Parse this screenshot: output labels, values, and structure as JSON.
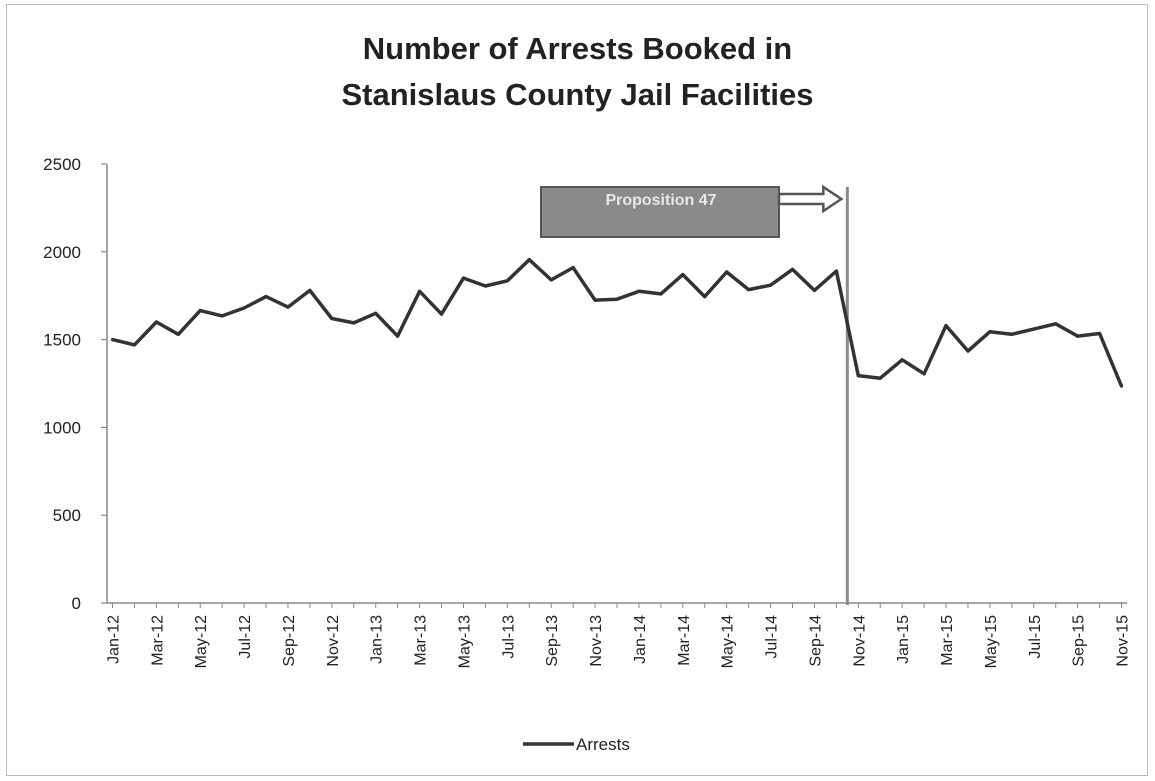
{
  "chart_data": {
    "type": "line",
    "title_line1": "Number of Arrests Booked in",
    "title_line2": "Stanislaus County Jail Facilities",
    "xlabel": "",
    "ylabel": "",
    "ylim": [
      0,
      2500
    ],
    "yticks": [
      0,
      500,
      1000,
      1500,
      2000,
      2500
    ],
    "grid": false,
    "legend_position": "bottom",
    "x": [
      "Jan-12",
      "Feb-12",
      "Mar-12",
      "Apr-12",
      "May-12",
      "Jun-12",
      "Jul-12",
      "Aug-12",
      "Sep-12",
      "Oct-12",
      "Nov-12",
      "Dec-12",
      "Jan-13",
      "Feb-13",
      "Mar-13",
      "Apr-13",
      "May-13",
      "Jun-13",
      "Jul-13",
      "Aug-13",
      "Sep-13",
      "Oct-13",
      "Nov-13",
      "Dec-13",
      "Jan-14",
      "Feb-14",
      "Mar-14",
      "Apr-14",
      "May-14",
      "Jun-14",
      "Jul-14",
      "Aug-14",
      "Sep-14",
      "Oct-14",
      "Nov-14",
      "Dec-14",
      "Jan-15",
      "Feb-15",
      "Mar-15",
      "Apr-15",
      "May-15",
      "Jun-15",
      "Jul-15",
      "Aug-15",
      "Sep-15",
      "Oct-15",
      "Nov-15"
    ],
    "xtick_labels": [
      "Jan-12",
      "Mar-12",
      "May-12",
      "Jul-12",
      "Sep-12",
      "Nov-12",
      "Jan-13",
      "Mar-13",
      "May-13",
      "Jul-13",
      "Sep-13",
      "Nov-13",
      "Jan-14",
      "Mar-14",
      "May-14",
      "Jul-14",
      "Sep-14",
      "Nov-14",
      "Jan-15",
      "Mar-15",
      "May-15",
      "Jul-15",
      "Sep-15",
      "Nov-15"
    ],
    "series": [
      {
        "name": "Arrests",
        "color": "#333333",
        "values": [
          1500,
          1470,
          1600,
          1530,
          1665,
          1635,
          1680,
          1745,
          1685,
          1780,
          1620,
          1595,
          1650,
          1520,
          1775,
          1645,
          1850,
          1805,
          1835,
          1955,
          1840,
          1910,
          1725,
          1730,
          1775,
          1760,
          1870,
          1745,
          1885,
          1785,
          1810,
          1900,
          1780,
          1890,
          1295,
          1280,
          1385,
          1305,
          1580,
          1435,
          1545,
          1530,
          1560,
          1590,
          1520,
          1535,
          1235
        ]
      }
    ],
    "annotation": {
      "label": "Proposition 47",
      "marker_after": "Oct-14",
      "box_color": "#8a8a8a",
      "line_color": "#8a8a8a"
    }
  }
}
